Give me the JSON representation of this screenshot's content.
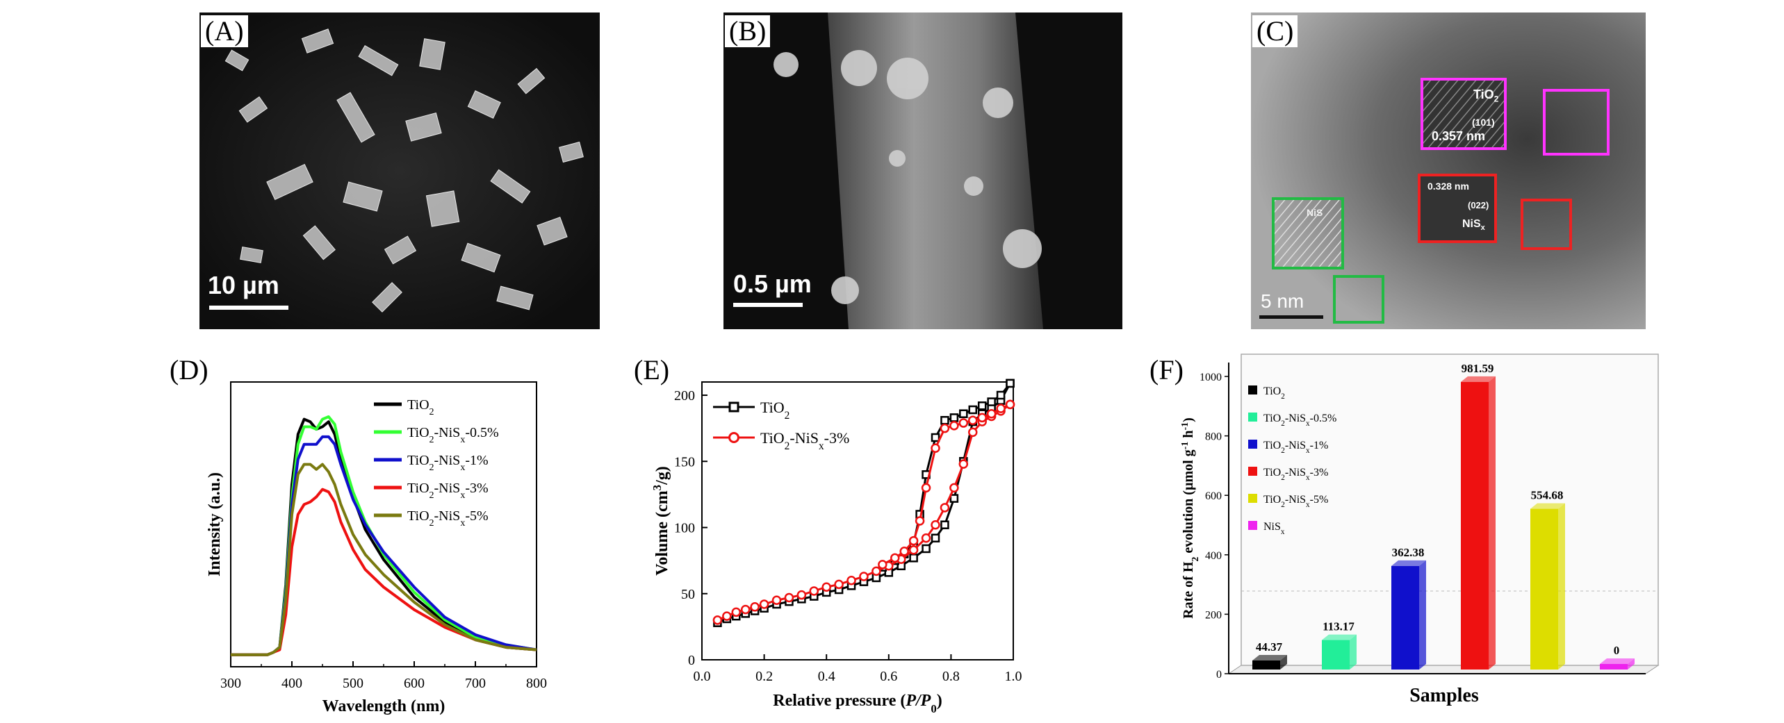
{
  "panels": {
    "A": {
      "label": "(A)",
      "scale": "10 µm"
    },
    "B": {
      "label": "(B)",
      "scale": "0.5 µm"
    },
    "C": {
      "label": "(C)",
      "scale": "5 nm",
      "annotations": {
        "tio2_label": "TiO",
        "tio2_sub": "2",
        "tio2_plane": "(101)",
        "tio2_spacing": "0.357 nm",
        "nis_spacing": "0.328 nm",
        "nis_plane": "(022)",
        "nis_label": "NiS",
        "nis_sub": "x",
        "green_label": "NiS"
      }
    },
    "D": {
      "label": "(D)"
    },
    "E": {
      "label": "(E)"
    },
    "F": {
      "label": "(F)"
    }
  },
  "colors": {
    "tio2": "#000000",
    "nis05": "#33ff33",
    "nis1": "#1010cc",
    "nis3": "#ee1111",
    "nis5": "#7a7a10",
    "barNiS05": "#22ee99",
    "barNiS5": "#dddd00",
    "barNiSx": "#ee22ee"
  },
  "chart_data": [
    {
      "panel": "D",
      "type": "line",
      "xlabel": "Wavelength (nm)",
      "ylabel": "Intensity (a.u.)",
      "xlim": [
        300,
        800
      ],
      "xticks": [
        "300",
        "400",
        "500",
        "600",
        "700",
        "800"
      ],
      "legend": "top-right",
      "x": [
        300,
        360,
        370,
        380,
        390,
        400,
        410,
        420,
        430,
        440,
        450,
        460,
        470,
        480,
        500,
        520,
        550,
        600,
        650,
        700,
        750,
        800
      ],
      "series": [
        {
          "name_main": "TiO",
          "name_sub": "2",
          "name_rest": "",
          "color_key": "tio2",
          "values": [
            0.02,
            0.02,
            0.03,
            0.05,
            0.3,
            0.7,
            0.9,
            0.96,
            0.95,
            0.92,
            0.93,
            0.95,
            0.9,
            0.8,
            0.65,
            0.52,
            0.4,
            0.25,
            0.15,
            0.08,
            0.05,
            0.04
          ]
        },
        {
          "name_main": "TiO",
          "name_sub": "2",
          "name_rest": "-NiS",
          "name_sub2": "x",
          "name_tail": "-0.5%",
          "color_key": "nis05",
          "values": [
            0.02,
            0.02,
            0.03,
            0.05,
            0.28,
            0.65,
            0.86,
            0.93,
            0.93,
            0.92,
            0.96,
            0.97,
            0.94,
            0.83,
            0.67,
            0.55,
            0.42,
            0.27,
            0.16,
            0.09,
            0.06,
            0.04
          ]
        },
        {
          "name_main": "TiO",
          "name_sub": "2",
          "name_rest": "-NiS",
          "name_sub2": "x",
          "name_tail": "-1%",
          "color_key": "nis1",
          "values": [
            0.02,
            0.02,
            0.03,
            0.05,
            0.26,
            0.62,
            0.8,
            0.86,
            0.86,
            0.86,
            0.89,
            0.89,
            0.86,
            0.78,
            0.64,
            0.54,
            0.43,
            0.29,
            0.17,
            0.1,
            0.06,
            0.04
          ]
        },
        {
          "name_main": "TiO",
          "name_sub": "2",
          "name_rest": "-NiS",
          "name_sub2": "x",
          "name_tail": "-3%",
          "color_key": "nis3",
          "values": [
            0.02,
            0.02,
            0.03,
            0.04,
            0.18,
            0.45,
            0.58,
            0.62,
            0.63,
            0.65,
            0.68,
            0.67,
            0.63,
            0.55,
            0.44,
            0.36,
            0.29,
            0.2,
            0.13,
            0.08,
            0.05,
            0.04
          ]
        },
        {
          "name_main": "TiO",
          "name_sub": "2",
          "name_rest": "-NiS",
          "name_sub2": "x",
          "name_tail": "-5%",
          "color_key": "nis5",
          "values": [
            0.02,
            0.02,
            0.03,
            0.05,
            0.24,
            0.58,
            0.74,
            0.78,
            0.78,
            0.76,
            0.78,
            0.75,
            0.7,
            0.62,
            0.5,
            0.42,
            0.34,
            0.23,
            0.14,
            0.08,
            0.05,
            0.04
          ]
        }
      ]
    },
    {
      "panel": "E",
      "type": "line",
      "xlabel_main": "Relative pressure (",
      "xlabel_ital": "P/P",
      "xlabel_sub": "0",
      "xlabel_end": ")",
      "ylabel_main": "Volume (cm",
      "ylabel_sup": "3",
      "ylabel_end": "/g)",
      "xlim": [
        0.0,
        1.0
      ],
      "ylim": [
        0,
        210
      ],
      "xticks": [
        "0.0",
        "0.2",
        "0.4",
        "0.6",
        "0.8",
        "1.0"
      ],
      "yticks": [
        "0",
        "50",
        "100",
        "150",
        "200"
      ],
      "legend": "top-left",
      "series": [
        {
          "name_main": "TiO",
          "name_sub": "2",
          "name_rest": "",
          "color_key": "tio2",
          "marker": "square",
          "adsorption": {
            "x": [
              0.05,
              0.08,
              0.11,
              0.14,
              0.17,
              0.2,
              0.24,
              0.28,
              0.32,
              0.36,
              0.4,
              0.44,
              0.48,
              0.52,
              0.56,
              0.6,
              0.64,
              0.68,
              0.72,
              0.75,
              0.78,
              0.81,
              0.84,
              0.87,
              0.9,
              0.93,
              0.96,
              0.99
            ],
            "y": [
              28,
              31,
              33,
              35,
              37,
              39,
              42,
              44,
              46,
              48,
              51,
              53,
              56,
              59,
              62,
              66,
              71,
              77,
              84,
              92,
              102,
              122,
              150,
              180,
              186,
              190,
              196,
              209
            ]
          },
          "desorption": {
            "x": [
              0.99,
              0.96,
              0.93,
              0.9,
              0.87,
              0.84,
              0.81,
              0.78,
              0.75,
              0.72,
              0.7,
              0.68,
              0.65,
              0.62,
              0.58
            ],
            "y": [
              209,
              200,
              195,
              192,
              189,
              186,
              183,
              181,
              168,
              140,
              110,
              88,
              80,
              75,
              70
            ]
          }
        },
        {
          "name_main": "TiO",
          "name_sub": "2",
          "name_rest": "-NiS",
          "name_sub2": "x",
          "name_tail": "-3%",
          "color_key": "nis3",
          "marker": "circle",
          "adsorption": {
            "x": [
              0.05,
              0.08,
              0.11,
              0.14,
              0.17,
              0.2,
              0.24,
              0.28,
              0.32,
              0.36,
              0.4,
              0.44,
              0.48,
              0.52,
              0.56,
              0.6,
              0.64,
              0.68,
              0.72,
              0.75,
              0.78,
              0.81,
              0.84,
              0.87,
              0.9,
              0.93,
              0.96,
              0.99
            ],
            "y": [
              30,
              33,
              36,
              38,
              40,
              42,
              45,
              47,
              49,
              52,
              55,
              57,
              60,
              63,
              67,
              71,
              76,
              83,
              92,
              102,
              115,
              130,
              148,
              172,
              180,
              184,
              188,
              193
            ]
          },
          "desorption": {
            "x": [
              0.99,
              0.96,
              0.93,
              0.9,
              0.87,
              0.84,
              0.81,
              0.78,
              0.75,
              0.72,
              0.7,
              0.68,
              0.65,
              0.62,
              0.58
            ],
            "y": [
              193,
              190,
              186,
              183,
              181,
              179,
              177,
              175,
              160,
              130,
              105,
              90,
              82,
              77,
              72
            ]
          }
        }
      ]
    },
    {
      "panel": "F",
      "type": "bar",
      "xlabel": "Samples",
      "ylabel_main": "Rate of H",
      "ylabel_sub": "2",
      "ylabel_end": " evolution (µmol g",
      "ylabel_sup1": "-1",
      "ylabel_mid": " h",
      "ylabel_sup2": "-1",
      "ylabel_close": ")",
      "ylim": [
        0,
        1000
      ],
      "yticks": [
        "0",
        "200",
        "400",
        "600",
        "800",
        "1000"
      ],
      "legend": "top-left",
      "categories": [
        {
          "main": "TiO",
          "sub": "2",
          "rest": "",
          "color_key": "tio2"
        },
        {
          "main": "TiO",
          "sub": "2",
          "rest": "-NiS",
          "sub2": "x",
          "tail": "-0.5%",
          "color_key": "barNiS05"
        },
        {
          "main": "TiO",
          "sub": "2",
          "rest": "-NiS",
          "sub2": "x",
          "tail": "-1%",
          "color_key": "nis1"
        },
        {
          "main": "TiO",
          "sub": "2",
          "rest": "-NiS",
          "sub2": "x",
          "tail": "-3%",
          "color_key": "nis3"
        },
        {
          "main": "TiO",
          "sub": "2",
          "rest": "-NiS",
          "sub2": "x",
          "tail": "-5%",
          "color_key": "barNiS5"
        },
        {
          "main": "NiS",
          "sub": "x",
          "rest": "",
          "color_key": "barNiSx"
        }
      ],
      "values": [
        44.37,
        113.17,
        362.38,
        981.59,
        554.68,
        0
      ],
      "value_labels": [
        "44.37",
        "113.17",
        "362.38",
        "981.59",
        "554.68",
        "0"
      ]
    }
  ]
}
